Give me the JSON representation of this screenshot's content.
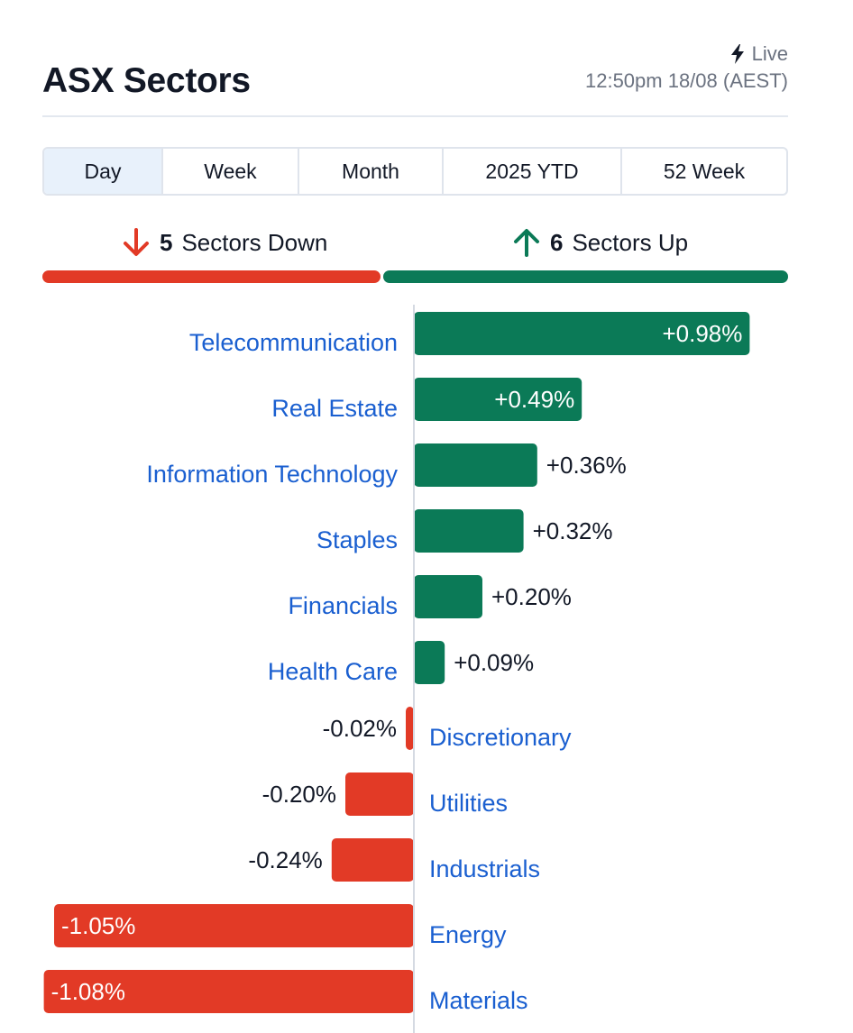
{
  "header": {
    "title": "ASX Sectors",
    "live_label": "Live",
    "timestamp": "12:50pm 18/08 (AEST)"
  },
  "tabs": [
    "Day",
    "Week",
    "Month",
    "2025 YTD",
    "52 Week"
  ],
  "active_tab": "Day",
  "summary": {
    "down_count": "5",
    "down_label": "Sectors Down",
    "up_count": "6",
    "up_label": "Sectors Up",
    "down_color": "#e23a26",
    "up_color": "#0b7a57"
  },
  "icons": {
    "live": "lightning-bolt-icon",
    "down": "arrow-down-icon",
    "up": "arrow-up-icon"
  },
  "chart_data": {
    "type": "bar",
    "orientation": "horizontal",
    "categories": [
      "Telecommunication",
      "Real Estate",
      "Information Technology",
      "Staples",
      "Financials",
      "Health Care",
      "Discretionary",
      "Utilities",
      "Industrials",
      "Energy",
      "Materials"
    ],
    "values": [
      0.98,
      0.49,
      0.36,
      0.32,
      0.2,
      0.09,
      -0.02,
      -0.2,
      -0.24,
      -1.05,
      -1.08
    ],
    "value_labels": [
      "+0.98%",
      "+0.49%",
      "+0.36%",
      "+0.32%",
      "+0.20%",
      "+0.09%",
      "-0.02%",
      "-0.20%",
      "-0.24%",
      "-1.05%",
      "-1.08%"
    ],
    "unit": "%",
    "positive_color": "#0b7a57",
    "negative_color": "#e23a26"
  }
}
